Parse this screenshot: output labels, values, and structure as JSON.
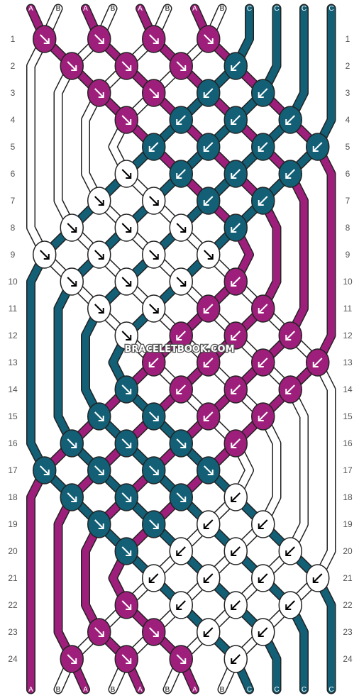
{
  "watermark": "BRACELETBOOK.COM",
  "colors": {
    "A": "#9e1f7b",
    "B": "#ffffff",
    "C": "#125f76",
    "outline": "#222222",
    "label_text": "#555555"
  },
  "strands": {
    "top": [
      "A",
      "B",
      "A",
      "B",
      "A",
      "B",
      "A",
      "B",
      "C",
      "C",
      "C",
      "C"
    ],
    "bottom": [
      "A",
      "B",
      "A",
      "B",
      "A",
      "B",
      "A",
      "B",
      "C",
      "C",
      "C",
      "C"
    ]
  },
  "rows": {
    "left": [
      "1",
      "2",
      "3",
      "4",
      "5",
      "6",
      "7",
      "8",
      "9",
      "10",
      "11",
      "12",
      "13",
      "14",
      "15",
      "16",
      "17",
      "18",
      "19",
      "20",
      "21",
      "22",
      "23",
      "24"
    ],
    "right": [
      "1",
      "2",
      "3",
      "4",
      "5",
      "6",
      "7",
      "8",
      "9",
      "10",
      "11",
      "12",
      "13",
      "14",
      "15",
      "16",
      "17",
      "18",
      "19",
      "20",
      "21",
      "22",
      "23",
      "24"
    ]
  },
  "knots": [
    {
      "row": 1,
      "col": 1,
      "color": "A",
      "arrow": "forward"
    },
    {
      "row": 1,
      "col": 3,
      "color": "A",
      "arrow": "forward"
    },
    {
      "row": 1,
      "col": 5,
      "color": "A",
      "arrow": "forward"
    },
    {
      "row": 1,
      "col": 7,
      "color": "A",
      "arrow": "forward"
    },
    {
      "row": 2,
      "col": 2,
      "color": "A",
      "arrow": "forward"
    },
    {
      "row": 2,
      "col": 4,
      "color": "A",
      "arrow": "forward"
    },
    {
      "row": 2,
      "col": 6,
      "color": "A",
      "arrow": "forward"
    },
    {
      "row": 2,
      "col": 8,
      "color": "C",
      "arrow": "backward"
    },
    {
      "row": 3,
      "col": 3,
      "color": "A",
      "arrow": "forward"
    },
    {
      "row": 3,
      "col": 5,
      "color": "A",
      "arrow": "forward"
    },
    {
      "row": 3,
      "col": 7,
      "color": "C",
      "arrow": "backward"
    },
    {
      "row": 3,
      "col": 9,
      "color": "C",
      "arrow": "backward"
    },
    {
      "row": 4,
      "col": 4,
      "color": "A",
      "arrow": "forward"
    },
    {
      "row": 4,
      "col": 6,
      "color": "C",
      "arrow": "backward"
    },
    {
      "row": 4,
      "col": 8,
      "color": "C",
      "arrow": "backward"
    },
    {
      "row": 4,
      "col": 10,
      "color": "C",
      "arrow": "backward"
    },
    {
      "row": 5,
      "col": 5,
      "color": "C",
      "arrow": "backward"
    },
    {
      "row": 5,
      "col": 7,
      "color": "C",
      "arrow": "backward"
    },
    {
      "row": 5,
      "col": 9,
      "color": "C",
      "arrow": "backward"
    },
    {
      "row": 5,
      "col": 11,
      "color": "C",
      "arrow": "backward"
    },
    {
      "row": 6,
      "col": 4,
      "color": "B",
      "arrow": "forward"
    },
    {
      "row": 6,
      "col": 6,
      "color": "C",
      "arrow": "backward"
    },
    {
      "row": 6,
      "col": 8,
      "color": "C",
      "arrow": "backward"
    },
    {
      "row": 6,
      "col": 10,
      "color": "C",
      "arrow": "backward"
    },
    {
      "row": 7,
      "col": 3,
      "color": "B",
      "arrow": "forward"
    },
    {
      "row": 7,
      "col": 5,
      "color": "B",
      "arrow": "forward"
    },
    {
      "row": 7,
      "col": 7,
      "color": "C",
      "arrow": "backward"
    },
    {
      "row": 7,
      "col": 9,
      "color": "C",
      "arrow": "backward"
    },
    {
      "row": 8,
      "col": 2,
      "color": "B",
      "arrow": "forward"
    },
    {
      "row": 8,
      "col": 4,
      "color": "B",
      "arrow": "forward"
    },
    {
      "row": 8,
      "col": 6,
      "color": "B",
      "arrow": "forward"
    },
    {
      "row": 8,
      "col": 8,
      "color": "C",
      "arrow": "backward"
    },
    {
      "row": 9,
      "col": 1,
      "color": "B",
      "arrow": "forward"
    },
    {
      "row": 9,
      "col": 3,
      "color": "B",
      "arrow": "forward"
    },
    {
      "row": 9,
      "col": 5,
      "color": "B",
      "arrow": "forward"
    },
    {
      "row": 9,
      "col": 7,
      "color": "B",
      "arrow": "forward"
    },
    {
      "row": 10,
      "col": 2,
      "color": "B",
      "arrow": "forward"
    },
    {
      "row": 10,
      "col": 4,
      "color": "B",
      "arrow": "forward"
    },
    {
      "row": 10,
      "col": 6,
      "color": "B",
      "arrow": "forward"
    },
    {
      "row": 10,
      "col": 8,
      "color": "A",
      "arrow": "backward"
    },
    {
      "row": 11,
      "col": 3,
      "color": "B",
      "arrow": "forward"
    },
    {
      "row": 11,
      "col": 5,
      "color": "B",
      "arrow": "forward"
    },
    {
      "row": 11,
      "col": 7,
      "color": "A",
      "arrow": "backward"
    },
    {
      "row": 11,
      "col": 9,
      "color": "A",
      "arrow": "backward"
    },
    {
      "row": 12,
      "col": 4,
      "color": "B",
      "arrow": "forward"
    },
    {
      "row": 12,
      "col": 6,
      "color": "A",
      "arrow": "backward"
    },
    {
      "row": 12,
      "col": 8,
      "color": "A",
      "arrow": "backward"
    },
    {
      "row": 12,
      "col": 10,
      "color": "A",
      "arrow": "backward"
    },
    {
      "row": 13,
      "col": 5,
      "color": "A",
      "arrow": "backward"
    },
    {
      "row": 13,
      "col": 7,
      "color": "A",
      "arrow": "backward"
    },
    {
      "row": 13,
      "col": 9,
      "color": "A",
      "arrow": "backward"
    },
    {
      "row": 13,
      "col": 11,
      "color": "A",
      "arrow": "backward"
    },
    {
      "row": 14,
      "col": 4,
      "color": "C",
      "arrow": "forward"
    },
    {
      "row": 14,
      "col": 6,
      "color": "A",
      "arrow": "backward"
    },
    {
      "row": 14,
      "col": 8,
      "color": "A",
      "arrow": "backward"
    },
    {
      "row": 14,
      "col": 10,
      "color": "A",
      "arrow": "backward"
    },
    {
      "row": 15,
      "col": 3,
      "color": "C",
      "arrow": "forward"
    },
    {
      "row": 15,
      "col": 5,
      "color": "C",
      "arrow": "forward"
    },
    {
      "row": 15,
      "col": 7,
      "color": "A",
      "arrow": "backward"
    },
    {
      "row": 15,
      "col": 9,
      "color": "A",
      "arrow": "backward"
    },
    {
      "row": 16,
      "col": 2,
      "color": "C",
      "arrow": "forward"
    },
    {
      "row": 16,
      "col": 4,
      "color": "C",
      "arrow": "forward"
    },
    {
      "row": 16,
      "col": 6,
      "color": "C",
      "arrow": "forward"
    },
    {
      "row": 16,
      "col": 8,
      "color": "A",
      "arrow": "backward"
    },
    {
      "row": 17,
      "col": 1,
      "color": "C",
      "arrow": "forward"
    },
    {
      "row": 17,
      "col": 3,
      "color": "C",
      "arrow": "forward"
    },
    {
      "row": 17,
      "col": 5,
      "color": "C",
      "arrow": "forward"
    },
    {
      "row": 17,
      "col": 7,
      "color": "C",
      "arrow": "forward"
    },
    {
      "row": 18,
      "col": 2,
      "color": "C",
      "arrow": "forward"
    },
    {
      "row": 18,
      "col": 4,
      "color": "C",
      "arrow": "forward"
    },
    {
      "row": 18,
      "col": 6,
      "color": "C",
      "arrow": "forward"
    },
    {
      "row": 18,
      "col": 8,
      "color": "B",
      "arrow": "backward"
    },
    {
      "row": 19,
      "col": 3,
      "color": "C",
      "arrow": "forward"
    },
    {
      "row": 19,
      "col": 5,
      "color": "C",
      "arrow": "forward"
    },
    {
      "row": 19,
      "col": 7,
      "color": "B",
      "arrow": "backward"
    },
    {
      "row": 19,
      "col": 9,
      "color": "B",
      "arrow": "backward"
    },
    {
      "row": 20,
      "col": 4,
      "color": "C",
      "arrow": "forward"
    },
    {
      "row": 20,
      "col": 6,
      "color": "B",
      "arrow": "backward"
    },
    {
      "row": 20,
      "col": 8,
      "color": "B",
      "arrow": "backward"
    },
    {
      "row": 20,
      "col": 10,
      "color": "B",
      "arrow": "backward"
    },
    {
      "row": 21,
      "col": 5,
      "color": "B",
      "arrow": "backward"
    },
    {
      "row": 21,
      "col": 7,
      "color": "B",
      "arrow": "backward"
    },
    {
      "row": 21,
      "col": 9,
      "color": "B",
      "arrow": "backward"
    },
    {
      "row": 21,
      "col": 11,
      "color": "B",
      "arrow": "backward"
    },
    {
      "row": 22,
      "col": 4,
      "color": "A",
      "arrow": "forward"
    },
    {
      "row": 22,
      "col": 6,
      "color": "B",
      "arrow": "backward"
    },
    {
      "row": 22,
      "col": 8,
      "color": "B",
      "arrow": "backward"
    },
    {
      "row": 22,
      "col": 10,
      "color": "B",
      "arrow": "backward"
    },
    {
      "row": 23,
      "col": 3,
      "color": "A",
      "arrow": "forward"
    },
    {
      "row": 23,
      "col": 5,
      "color": "A",
      "arrow": "forward"
    },
    {
      "row": 23,
      "col": 7,
      "color": "B",
      "arrow": "backward"
    },
    {
      "row": 23,
      "col": 9,
      "color": "B",
      "arrow": "backward"
    },
    {
      "row": 24,
      "col": 2,
      "color": "A",
      "arrow": "forward"
    },
    {
      "row": 24,
      "col": 4,
      "color": "A",
      "arrow": "forward"
    },
    {
      "row": 24,
      "col": 6,
      "color": "A",
      "arrow": "forward"
    },
    {
      "row": 24,
      "col": 8,
      "color": "B",
      "arrow": "backward"
    }
  ]
}
